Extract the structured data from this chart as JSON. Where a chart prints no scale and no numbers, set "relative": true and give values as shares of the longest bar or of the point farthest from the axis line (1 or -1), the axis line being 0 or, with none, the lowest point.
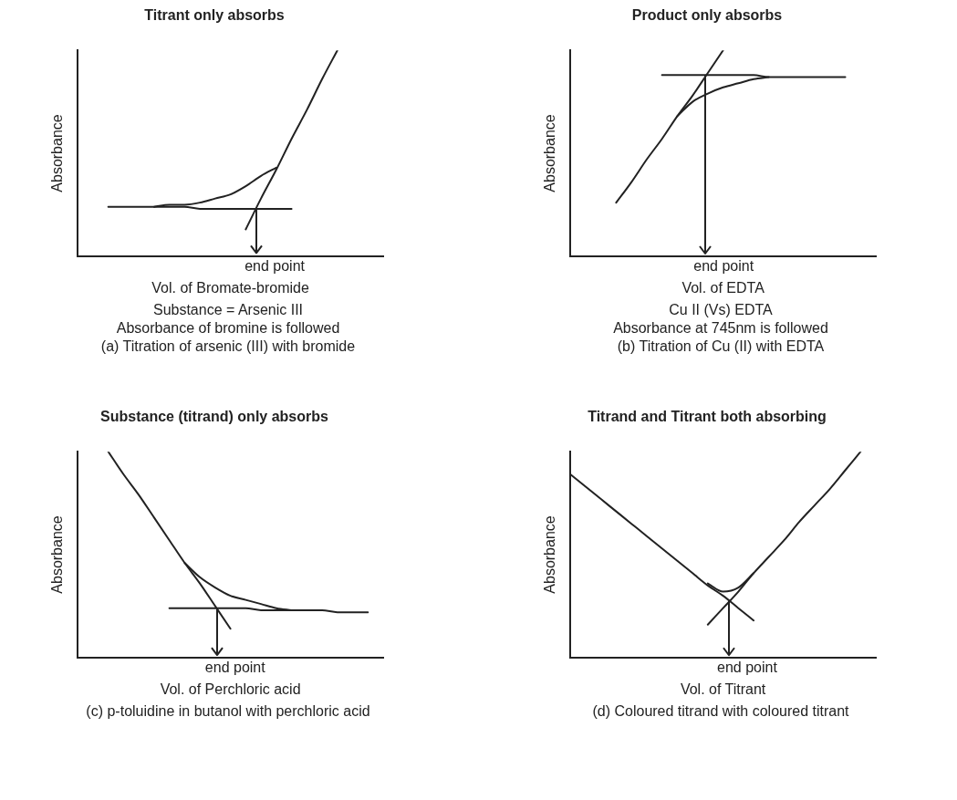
{
  "chart_data": [
    {
      "type": "line",
      "title": "Titrant only absorbs",
      "xlabel": "Vol. of Bromate-bromide",
      "ylabel": "Absorbance",
      "relative": true,
      "tick_labels": false,
      "categories": [
        null,
        null,
        null,
        null,
        null,
        null,
        null,
        null,
        null,
        null,
        null,
        null,
        null,
        null,
        null,
        null,
        null,
        null,
        null,
        null,
        null
      ],
      "series": [
        {
          "color": "#222222",
          "values": [
            null,
            null,
            0.24,
            0.24,
            0.24,
            0.24,
            0.24,
            0.24,
            0.23,
            0.23,
            0.23,
            0.23,
            0.23,
            0.23,
            0.23,
            null,
            null,
            null,
            null,
            null,
            null
          ]
        },
        {
          "color": "#222222",
          "values": [
            null,
            null,
            null,
            null,
            null,
            null,
            null,
            null,
            null,
            null,
            null,
            0.13,
            0.28,
            0.42,
            0.57,
            0.71,
            0.86,
            1,
            null,
            null,
            null
          ]
        },
        {
          "color": "#222222",
          "values": [
            null,
            null,
            null,
            null,
            null,
            0.24,
            0.25,
            0.25,
            0.26,
            0.28,
            0.3,
            0.34,
            0.39,
            0.43,
            null,
            null,
            null,
            null,
            null,
            null,
            null
          ]
        }
      ],
      "annotations": [
        "end point",
        "Substance = Arsenic III",
        "Absorbance of bromine is followed",
        "(a) Titration of arsenic (III) with bromide"
      ]
    },
    {
      "type": "line",
      "title": "Product only absorbs",
      "xlabel": "Vol. of EDTA",
      "ylabel": "Absorbance",
      "relative": true,
      "tick_labels": false,
      "categories": [
        null,
        null,
        null,
        null,
        null,
        null,
        null,
        null,
        null,
        null,
        null,
        null,
        null,
        null,
        null,
        null,
        null,
        null,
        null,
        null,
        null
      ],
      "series": [
        {
          "color": "#222222",
          "values": [
            null,
            null,
            null,
            null,
            null,
            null,
            0.88,
            0.88,
            0.88,
            0.88,
            0.88,
            0.88,
            0.88,
            0.87,
            0.87,
            0.87,
            0.87,
            0.87,
            0.87,
            null,
            null
          ]
        },
        {
          "color": "#222222",
          "values": [
            null,
            null,
            null,
            0.26,
            0.36,
            0.47,
            0.57,
            0.68,
            0.78,
            0.89,
            1,
            null,
            null,
            null,
            null,
            null,
            null,
            null,
            null,
            null,
            null
          ]
        },
        {
          "color": "#222222",
          "values": [
            null,
            null,
            null,
            null,
            null,
            null,
            null,
            0.68,
            0.75,
            0.79,
            0.82,
            0.84,
            0.86,
            0.87,
            null,
            null,
            null,
            null,
            null,
            null,
            null
          ]
        }
      ],
      "annotations": [
        "end point",
        "Cu II (Vs) EDTA",
        "Absorbance at 745nm is followed",
        "(b) Titration of Cu (II) with EDTA"
      ]
    },
    {
      "type": "line",
      "title": "Substance (titrand) only absorbs",
      "xlabel": "Vol. of Perchloric acid",
      "ylabel": "Absorbance",
      "relative": true,
      "tick_labels": false,
      "categories": [
        null,
        null,
        null,
        null,
        null,
        null,
        null,
        null,
        null,
        null,
        null,
        null,
        null,
        null,
        null,
        null,
        null,
        null,
        null,
        null,
        null
      ],
      "series": [
        {
          "color": "#222222",
          "values": [
            null,
            null,
            1,
            0.89,
            0.79,
            0.68,
            0.57,
            0.46,
            0.36,
            0.25,
            0.14,
            null,
            null,
            null,
            null,
            null,
            null,
            null,
            null,
            null,
            null
          ]
        },
        {
          "color": "#222222",
          "values": [
            null,
            null,
            null,
            null,
            null,
            null,
            0.24,
            0.24,
            0.24,
            0.24,
            0.24,
            0.24,
            0.23,
            0.23,
            0.23,
            0.23,
            0.23,
            0.22,
            0.22,
            0.22,
            null
          ]
        },
        {
          "color": "#222222",
          "values": [
            null,
            null,
            null,
            null,
            null,
            null,
            null,
            0.46,
            0.39,
            0.34,
            0.3,
            0.28,
            0.26,
            0.24,
            0.23,
            null,
            null,
            null,
            null,
            null,
            null
          ]
        }
      ],
      "annotations": [
        "end point",
        "(c) p-toluidine in butanol with perchloric acid"
      ]
    },
    {
      "type": "line",
      "title": "Titrand and Titrant both absorbing",
      "xlabel": "Vol. of Titrant",
      "ylabel": "Absorbance",
      "relative": true,
      "tick_labels": false,
      "categories": [
        null,
        null,
        null,
        null,
        null,
        null,
        null,
        null,
        null,
        null,
        null,
        null,
        null,
        null,
        null,
        null,
        null,
        null,
        null,
        null,
        null
      ],
      "series": [
        {
          "color": "#222222",
          "values": [
            0.89,
            0.83,
            0.77,
            0.71,
            0.65,
            0.59,
            0.53,
            0.47,
            0.41,
            0.35,
            0.3,
            0.24,
            0.18,
            null,
            null,
            null,
            null,
            null,
            null,
            null,
            null
          ]
        },
        {
          "color": "#222222",
          "values": [
            null,
            null,
            null,
            null,
            null,
            null,
            null,
            null,
            null,
            0.16,
            0.24,
            0.32,
            0.41,
            0.49,
            0.57,
            0.66,
            0.74,
            0.82,
            0.91,
            1,
            null
          ]
        },
        {
          "color": "#222222",
          "values": [
            null,
            null,
            null,
            null,
            null,
            null,
            null,
            null,
            null,
            0.36,
            0.32,
            0.34,
            0.41,
            null,
            null,
            null,
            null,
            null,
            null,
            null,
            null
          ]
        }
      ],
      "annotations": [
        "end point",
        "(d) Coloured titrand with coloured titrant"
      ]
    }
  ]
}
